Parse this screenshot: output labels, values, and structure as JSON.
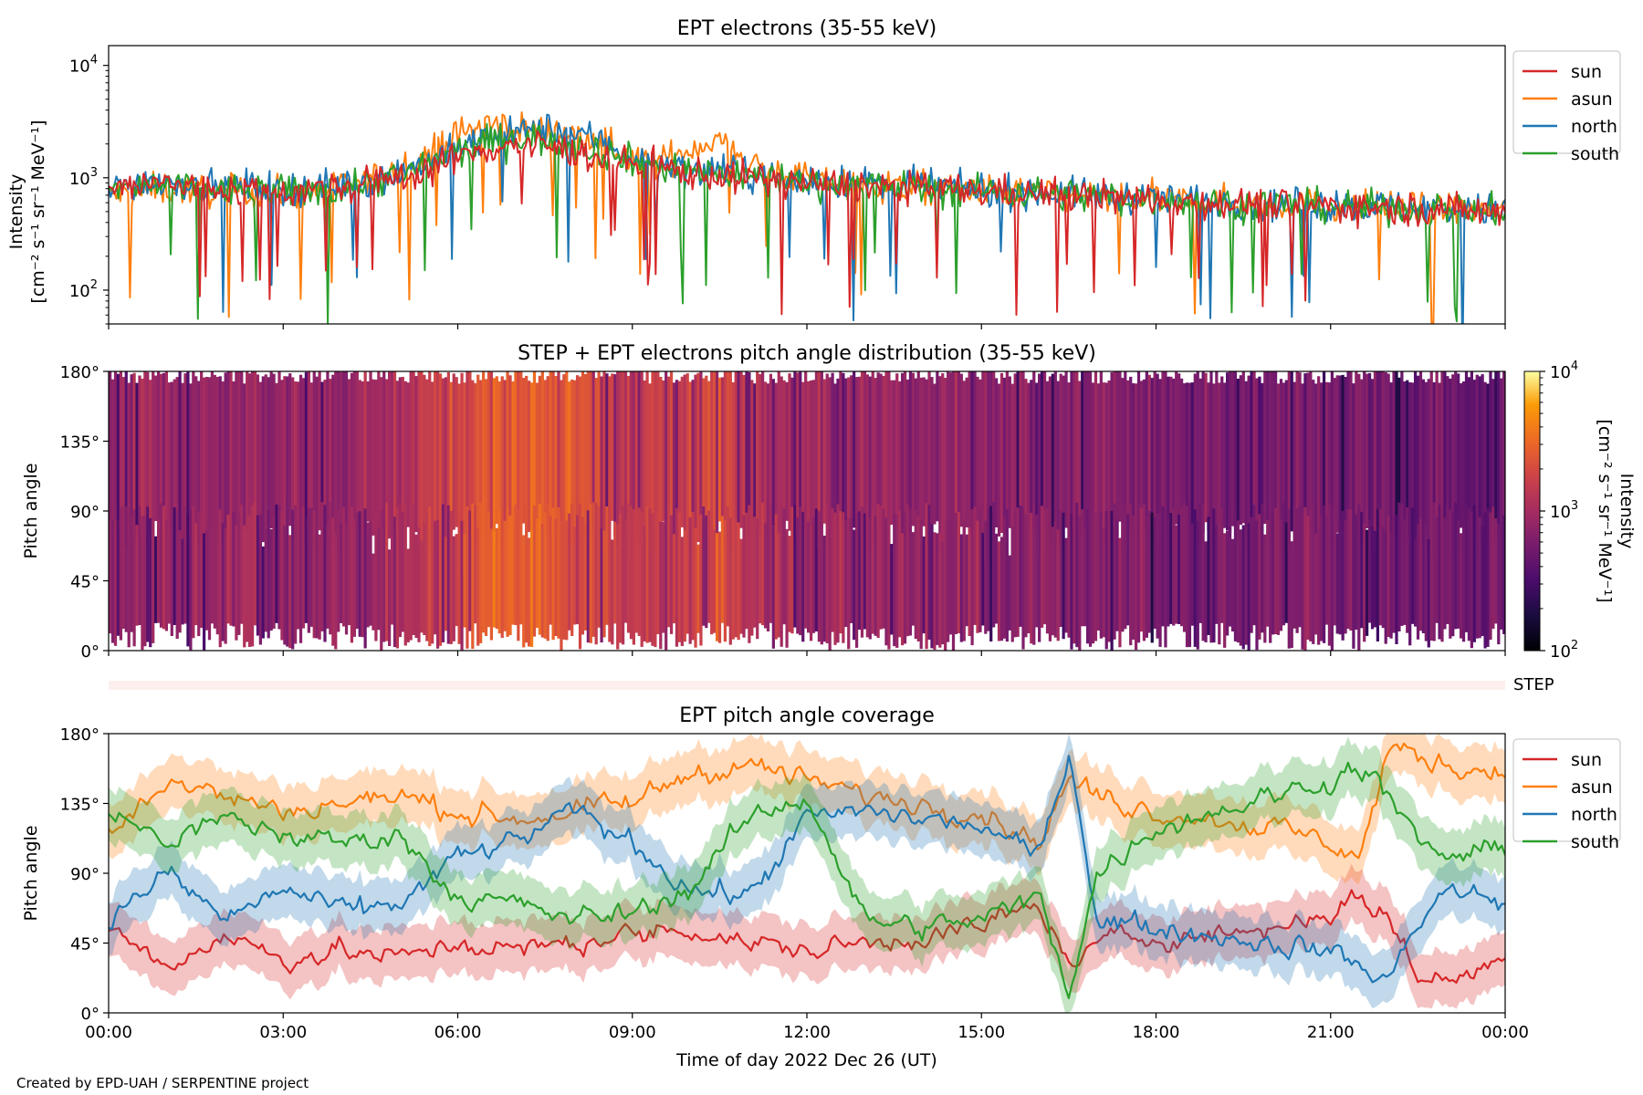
{
  "chart_data": [
    {
      "type": "line",
      "title": "EPT electrons (35-55 keV)",
      "ylabel_line1": "Intensity",
      "ylabel_line2": "[cm⁻² s⁻¹ sr⁻¹ MeV⁻¹]",
      "yscale": "log",
      "ylim": [
        50,
        15000
      ],
      "yticks": [
        {
          "value": 100,
          "base": "10",
          "exp": "2"
        },
        {
          "value": 1000,
          "base": "10",
          "exp": "3"
        },
        {
          "value": 10000,
          "base": "10",
          "exp": "4"
        }
      ],
      "xlim_hours": [
        0,
        24
      ],
      "legend_position": "outside-right",
      "series": [
        {
          "name": "sun",
          "color": "#d62728",
          "draw_order": 4,
          "points_hours": [
            0,
            0.5,
            1,
            1.5,
            2,
            2.5,
            3,
            3.5,
            4,
            4.5,
            5,
            5.5,
            6,
            6.5,
            7,
            7.5,
            8,
            8.5,
            9,
            9.5,
            10,
            10.5,
            11,
            11.5,
            12,
            12.5,
            13,
            13.5,
            14,
            14.5,
            15,
            15.5,
            16,
            16.5,
            17,
            17.5,
            18,
            18.5,
            19,
            19.5,
            20,
            20.5,
            21,
            21.5,
            22,
            22.5,
            23,
            23.5,
            24
          ],
          "values": [
            800,
            850,
            900,
            820,
            780,
            800,
            750,
            780,
            820,
            900,
            1000,
            1200,
            1500,
            1800,
            2000,
            1900,
            1700,
            1500,
            1300,
            1200,
            1100,
            1050,
            1000,
            950,
            900,
            870,
            850,
            820,
            800,
            780,
            760,
            740,
            720,
            700,
            680,
            660,
            640,
            620,
            600,
            590,
            580,
            570,
            560,
            550,
            540,
            530,
            520,
            510,
            500
          ]
        },
        {
          "name": "asun",
          "color": "#ff7f0e",
          "draw_order": 1,
          "points_hours": [
            0,
            0.5,
            1,
            1.5,
            2,
            2.5,
            3,
            3.5,
            4,
            4.5,
            5,
            5.5,
            6,
            6.5,
            7,
            7.5,
            8,
            8.5,
            9,
            9.5,
            10,
            10.5,
            11,
            11.5,
            12,
            12.5,
            13,
            13.5,
            14,
            14.5,
            15,
            15.5,
            16,
            16.5,
            17,
            17.5,
            18,
            18.5,
            19,
            19.5,
            20,
            20.5,
            21,
            21.5,
            22,
            22.5,
            23,
            23.5,
            24
          ],
          "values": [
            700,
            750,
            800,
            780,
            750,
            760,
            720,
            750,
            800,
            950,
            1200,
            1600,
            2400,
            3000,
            2800,
            2600,
            2400,
            2000,
            1500,
            1400,
            1800,
            2200,
            1400,
            1100,
            950,
            900,
            860,
            830,
            800,
            780,
            760,
            740,
            720,
            700,
            680,
            660,
            640,
            620,
            600,
            590,
            580,
            570,
            560,
            550,
            540,
            530,
            520,
            510,
            500
          ]
        },
        {
          "name": "north",
          "color": "#1f77b4",
          "draw_order": 2,
          "points_hours": [
            0,
            0.5,
            1,
            1.5,
            2,
            2.5,
            3,
            3.5,
            4,
            4.5,
            5,
            5.5,
            6,
            6.5,
            7,
            7.5,
            8,
            8.5,
            9,
            9.5,
            10,
            10.5,
            11,
            11.5,
            12,
            12.5,
            13,
            13.5,
            14,
            14.5,
            15,
            15.5,
            16,
            16.5,
            17,
            17.5,
            18,
            18.5,
            19,
            19.5,
            20,
            20.5,
            21,
            21.5,
            22,
            22.5,
            23,
            23.5,
            24
          ],
          "values": [
            850,
            900,
            950,
            860,
            820,
            840,
            790,
            820,
            860,
            960,
            1100,
            1400,
            1800,
            2300,
            2500,
            2700,
            2500,
            2100,
            1500,
            1300,
            1200,
            1150,
            1100,
            1000,
            950,
            900,
            880,
            850,
            830,
            800,
            780,
            760,
            740,
            720,
            700,
            680,
            660,
            640,
            620,
            600,
            590,
            580,
            570,
            560,
            550,
            540,
            530,
            520,
            510
          ]
        },
        {
          "name": "south",
          "color": "#2ca02c",
          "draw_order": 3,
          "points_hours": [
            0,
            0.5,
            1,
            1.5,
            2,
            2.5,
            3,
            3.5,
            4,
            4.5,
            5,
            5.5,
            6,
            6.5,
            7,
            7.5,
            8,
            8.5,
            9,
            9.5,
            10,
            10.5,
            11,
            11.5,
            12,
            12.5,
            13,
            13.5,
            14,
            14.5,
            15,
            15.5,
            16,
            16.5,
            17,
            17.5,
            18,
            18.5,
            19,
            19.5,
            20,
            20.5,
            21,
            21.5,
            22,
            22.5,
            23,
            23.5,
            24
          ],
          "values": [
            780,
            820,
            860,
            800,
            760,
            780,
            740,
            770,
            810,
            900,
            1050,
            1300,
            1700,
            2100,
            2300,
            2200,
            2000,
            1700,
            1400,
            1250,
            1150,
            1100,
            1050,
            980,
            920,
            880,
            850,
            820,
            800,
            780,
            760,
            740,
            720,
            700,
            680,
            660,
            640,
            620,
            600,
            590,
            580,
            570,
            560,
            550,
            540,
            530,
            520,
            510,
            500
          ]
        }
      ]
    },
    {
      "type": "heatmap",
      "title": "STEP + EPT electrons pitch angle distribution (35-55 keV)",
      "ylabel": "Pitch angle",
      "ylim_deg": [
        0,
        180
      ],
      "yticks": [
        "0°",
        "45°",
        "90°",
        "135°",
        "180°"
      ],
      "xlim_hours": [
        0,
        24
      ],
      "colorbar": {
        "label_line1": "Intensity",
        "label_line2": "[cm⁻² s⁻¹ sr⁻¹ MeV⁻¹]",
        "scale": "log",
        "range": [
          100,
          10000
        ],
        "colormap": "inferno",
        "ticks": [
          {
            "value": 100,
            "base": "10",
            "exp": "2"
          },
          {
            "value": 1000,
            "base": "10",
            "exp": "3"
          },
          {
            "value": 10000,
            "base": "10",
            "exp": "4"
          }
        ]
      },
      "intensity_profile_hours": [
        0,
        1,
        2,
        3,
        4,
        5,
        6,
        6.5,
        7,
        7.5,
        8,
        9,
        10,
        10.5,
        11,
        12,
        13,
        14,
        15,
        16,
        17,
        18,
        19,
        20,
        21,
        22,
        23,
        24
      ],
      "intensity_profile_values": [
        800,
        850,
        800,
        780,
        820,
        1000,
        1800,
        3000,
        2600,
        2500,
        2000,
        1300,
        1600,
        2200,
        1100,
        900,
        850,
        800,
        760,
        720,
        680,
        640,
        600,
        580,
        560,
        540,
        520,
        500
      ]
    },
    {
      "type": "line",
      "title": "EPT pitch angle coverage",
      "ylabel": "Pitch angle",
      "ylim_deg": [
        0,
        180
      ],
      "yticks": [
        "0°",
        "45°",
        "90°",
        "135°",
        "180°"
      ],
      "xlim_hours": [
        0,
        24
      ],
      "xticks": [
        "00:00",
        "03:00",
        "06:00",
        "09:00",
        "12:00",
        "15:00",
        "18:00",
        "21:00",
        "00:00"
      ],
      "xlabel": "Time of day 2022 Dec 26 (UT)",
      "legend_position": "outside-right",
      "series": [
        {
          "name": "sun",
          "color": "#d62728",
          "points_hours": [
            0,
            1,
            2,
            3,
            4,
            5,
            6,
            7,
            8,
            9,
            10,
            11,
            12,
            13,
            14,
            15,
            16,
            16.5,
            17,
            18,
            19,
            20,
            21,
            21.5,
            22,
            22.5,
            23,
            24
          ],
          "values": [
            55,
            30,
            50,
            35,
            40,
            35,
            45,
            40,
            45,
            50,
            55,
            45,
            40,
            45,
            50,
            55,
            70,
            30,
            45,
            50,
            50,
            55,
            65,
            75,
            60,
            25,
            20,
            35
          ]
        },
        {
          "name": "asun",
          "color": "#ff7f0e",
          "points_hours": [
            0,
            1,
            2,
            3,
            4,
            5,
            6,
            7,
            8,
            9,
            10,
            11,
            12,
            13,
            14,
            15,
            16,
            16.5,
            17,
            18,
            19,
            20,
            21,
            21.5,
            22,
            22.5,
            23,
            24
          ],
          "values": [
            120,
            150,
            140,
            130,
            135,
            140,
            130,
            125,
            130,
            135,
            155,
            160,
            150,
            140,
            135,
            130,
            110,
            150,
            140,
            130,
            125,
            120,
            110,
            100,
            170,
            165,
            160,
            155
          ]
        },
        {
          "name": "north",
          "color": "#1f77b4",
          "points_hours": [
            0,
            1,
            2,
            3,
            4,
            5,
            6,
            7,
            8,
            9,
            10,
            11,
            12,
            13,
            14,
            15,
            16,
            16.5,
            17,
            18,
            19,
            20,
            21,
            21.5,
            22,
            22.5,
            23,
            24
          ],
          "values": [
            60,
            90,
            60,
            80,
            65,
            70,
            100,
            110,
            130,
            110,
            80,
            75,
            125,
            130,
            125,
            120,
            100,
            170,
            60,
            55,
            50,
            45,
            40,
            30,
            20,
            60,
            80,
            70
          ]
        },
        {
          "name": "south",
          "color": "#2ca02c",
          "points_hours": [
            0,
            1,
            2,
            3,
            4,
            5,
            6,
            7,
            8,
            9,
            10,
            11,
            12,
            13,
            14,
            15,
            16,
            16.5,
            17,
            18,
            19,
            20,
            21,
            21.5,
            22,
            22.5,
            23,
            24
          ],
          "values": [
            130,
            110,
            125,
            115,
            110,
            115,
            75,
            70,
            60,
            65,
            80,
            125,
            140,
            60,
            55,
            60,
            75,
            15,
            90,
            120,
            130,
            140,
            150,
            160,
            140,
            110,
            100,
            105
          ]
        }
      ]
    }
  ],
  "shared_xticks": [
    "00:00",
    "03:00",
    "06:00",
    "09:00",
    "12:00",
    "15:00",
    "18:00",
    "21:00",
    "00:00"
  ],
  "step_strip": {
    "label": "STEP",
    "color": "#fdf0ec"
  },
  "credit": "Created by EPD-UAH / SERPENTINE project"
}
